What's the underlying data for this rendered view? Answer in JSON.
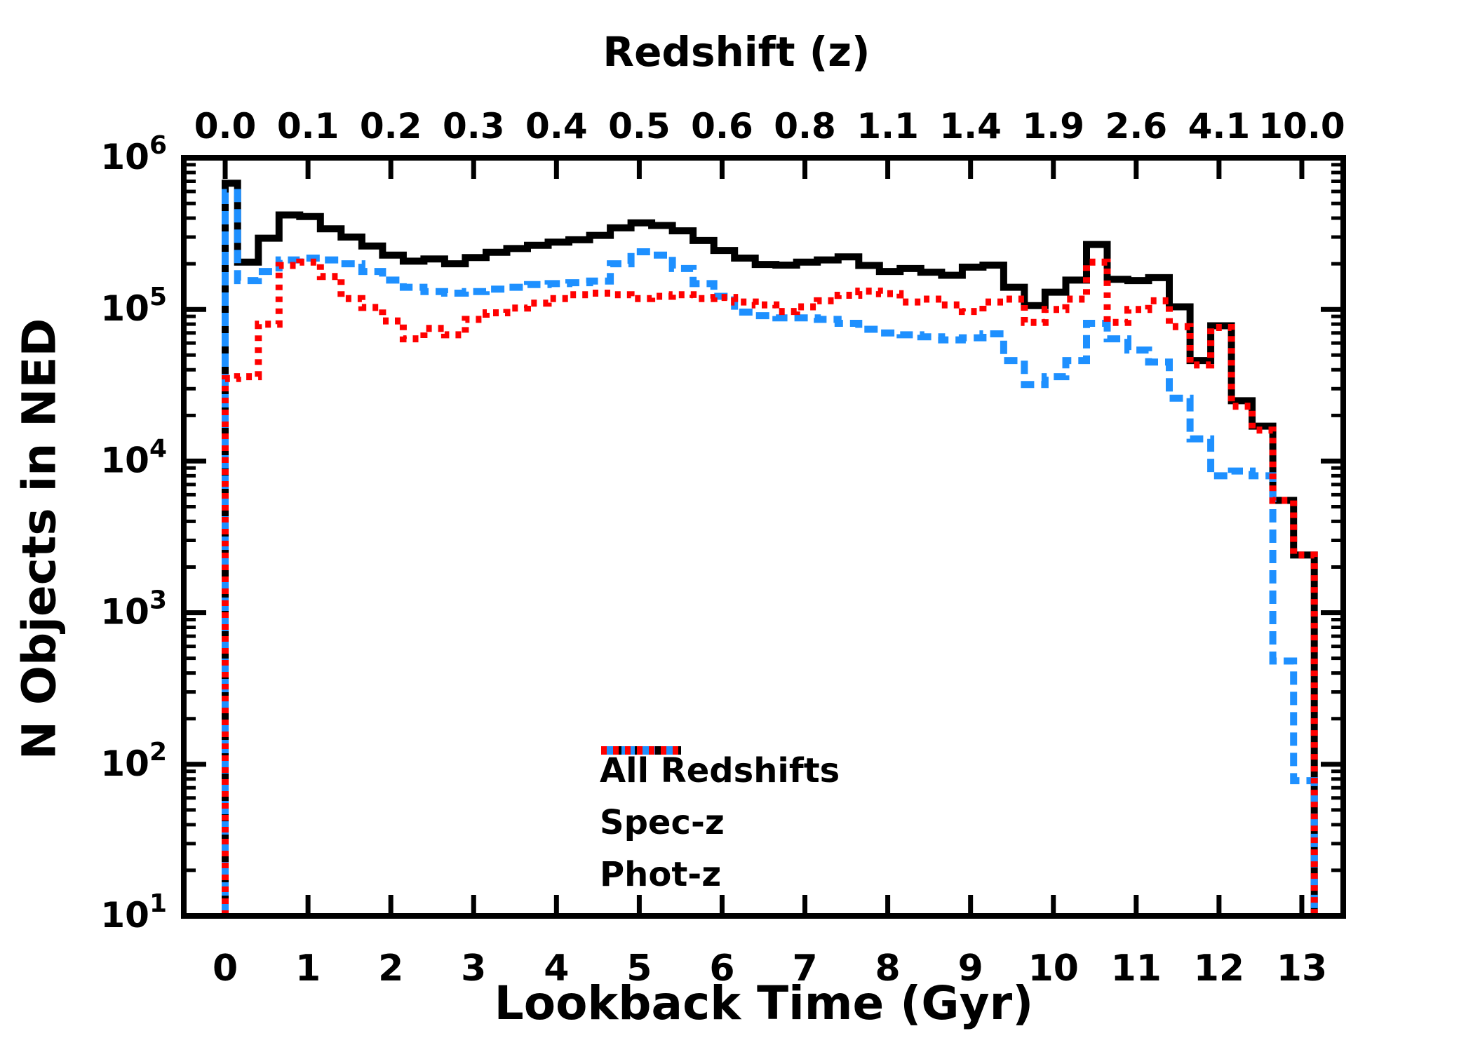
{
  "figure": {
    "top_axis_title": "Redshift (z)",
    "x_axis_title": "Lookback Time (Gyr)",
    "y_axis_title": "N Objects in NED",
    "background_color": "#ffffff"
  },
  "chart_data": {
    "type": "step-histogram",
    "title": "Redshift (z)",
    "xlabel": "Lookback Time (Gyr)",
    "ylabel": "N Objects in NED",
    "x_axis": {
      "min": -0.5,
      "max": 13.5,
      "major_ticks": [
        0,
        1,
        2,
        3,
        4,
        5,
        6,
        7,
        8,
        9,
        10,
        11,
        12,
        13
      ],
      "tick_labels": [
        "0",
        "1",
        "2",
        "3",
        "4",
        "5",
        "6",
        "7",
        "8",
        "9",
        "10",
        "11",
        "12",
        "13"
      ]
    },
    "top_axis": {
      "label": "Redshift (z)",
      "tick_positions_gyr": [
        0,
        1,
        2,
        3,
        4,
        5,
        6,
        7,
        8,
        9,
        10,
        11,
        12,
        13
      ],
      "tick_labels": [
        "0.0",
        "0.1",
        "0.2",
        "0.3",
        "0.4",
        "0.5",
        "0.6",
        "0.8",
        "1.1",
        "1.4",
        "1.9",
        "2.6",
        "4.1",
        "10.0"
      ]
    },
    "y_axis": {
      "scale": "log",
      "min": 10,
      "max": 1000000,
      "tick_exponents": [
        1,
        2,
        3,
        4,
        5,
        6
      ],
      "tick_labels": [
        "10^1",
        "10^2",
        "10^3",
        "10^4",
        "10^5",
        "10^6"
      ],
      "minor_ticks": "2-9 per decade"
    },
    "grid": false,
    "legend_position": "lower center",
    "bin_edges_gyr": [
      0.0,
      0.15,
      0.4,
      0.65,
      0.9,
      1.15,
      1.4,
      1.65,
      1.9,
      2.15,
      2.4,
      2.65,
      2.9,
      3.15,
      3.4,
      3.65,
      3.9,
      4.15,
      4.4,
      4.65,
      4.9,
      5.15,
      5.4,
      5.65,
      5.9,
      6.15,
      6.4,
      6.65,
      6.9,
      7.15,
      7.4,
      7.65,
      7.9,
      8.15,
      8.4,
      8.65,
      8.9,
      9.15,
      9.4,
      9.65,
      9.9,
      10.15,
      10.4,
      10.65,
      10.9,
      11.15,
      11.4,
      11.65,
      11.9,
      12.15,
      12.4,
      12.65,
      12.9,
      13.15
    ],
    "series": [
      {
        "name": "All Redshifts",
        "color": "#000000",
        "style": "solid",
        "values": [
          680000,
          205000,
          295000,
          420000,
          410000,
          340000,
          300000,
          262000,
          228000,
          208000,
          215000,
          200000,
          220000,
          238000,
          252000,
          265000,
          278000,
          288000,
          308000,
          345000,
          372000,
          358000,
          330000,
          285000,
          245000,
          218000,
          198000,
          196000,
          205000,
          212000,
          222000,
          195000,
          178000,
          186000,
          176000,
          168000,
          190000,
          196000,
          140000,
          106000,
          130000,
          156000,
          268000,
          158000,
          155000,
          162000,
          104000,
          46000,
          78000,
          25000,
          17000,
          5500,
          2400
        ]
      },
      {
        "name": "Spec-z",
        "color": "#1e90ff",
        "style": "dashed",
        "values": [
          590000,
          155000,
          178000,
          212000,
          218000,
          212000,
          200000,
          178000,
          156000,
          140000,
          131000,
          128000,
          131000,
          136000,
          140000,
          146000,
          148000,
          150000,
          154000,
          200000,
          240000,
          228000,
          186000,
          148000,
          122000,
          96000,
          91000,
          88000,
          88000,
          86000,
          81000,
          74000,
          70000,
          68000,
          66000,
          63000,
          65000,
          69000,
          46000,
          32000,
          36000,
          46000,
          81000,
          64000,
          54000,
          45000,
          26000,
          14000,
          8000,
          8600,
          8000,
          480,
          78
        ]
      },
      {
        "name": "Phot-z",
        "color": "#ff0000",
        "style": "dotted",
        "values": [
          35000,
          36000,
          80000,
          195000,
          205000,
          165000,
          118000,
          103000,
          84000,
          64000,
          75000,
          68000,
          86000,
          95000,
          102000,
          110000,
          118000,
          125000,
          128000,
          125000,
          118000,
          122000,
          125000,
          118000,
          120000,
          112000,
          107000,
          97000,
          104000,
          114000,
          124000,
          132000,
          127000,
          112000,
          117000,
          107000,
          97000,
          112000,
          117000,
          82000,
          100000,
          117000,
          205000,
          82000,
          100000,
          114000,
          77000,
          43000,
          76000,
          23000,
          16000,
          5500,
          2400
        ]
      }
    ]
  },
  "legend": {
    "items": [
      {
        "label": "All Redshifts"
      },
      {
        "label": "Spec-z"
      },
      {
        "label": "Phot-z"
      }
    ]
  }
}
